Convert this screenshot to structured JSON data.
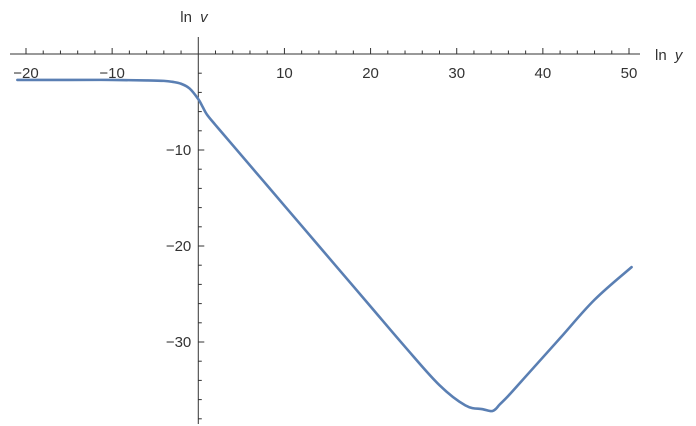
{
  "chart_data": {
    "type": "line",
    "title": "",
    "xlabel": "ln y",
    "xlabel_parts": {
      "prefix": "ln",
      "var": "y"
    },
    "ylabel": "ln v",
    "ylabel_parts": {
      "prefix": "ln",
      "var": "v"
    },
    "xlim": [
      -21,
      51
    ],
    "ylim": [
      -38.5,
      4.5
    ],
    "x_major_ticks": [
      -20,
      -10,
      10,
      20,
      30,
      40,
      50
    ],
    "x_tick_labels": [
      "−20",
      "−10",
      "10",
      "20",
      "30",
      "40",
      "50"
    ],
    "y_major_ticks": [
      -10,
      -20,
      -30
    ],
    "y_tick_labels": [
      "−10",
      "−20",
      "−30"
    ],
    "grid": false,
    "series": [
      {
        "color": "#5a7fb3",
        "x": [
          -21,
          -15,
          -10,
          -6,
          -4,
          -3,
          -2,
          -1,
          0,
          0.5,
          1,
          2,
          4,
          8,
          12,
          16,
          20,
          24,
          28,
          31,
          33,
          34,
          34.5,
          35,
          36,
          38,
          42,
          46,
          50.3
        ],
        "y": [
          -2.7,
          -2.7,
          -2.7,
          -2.75,
          -2.8,
          -2.9,
          -3.1,
          -3.6,
          -4.7,
          -5.5,
          -6.3,
          -7.4,
          -9.5,
          -13.7,
          -17.9,
          -22.1,
          -26.3,
          -30.5,
          -34.5,
          -36.6,
          -37.0,
          -37.2,
          -37.0,
          -36.5,
          -35.6,
          -33.6,
          -29.6,
          -25.6,
          -22.2
        ]
      }
    ]
  }
}
